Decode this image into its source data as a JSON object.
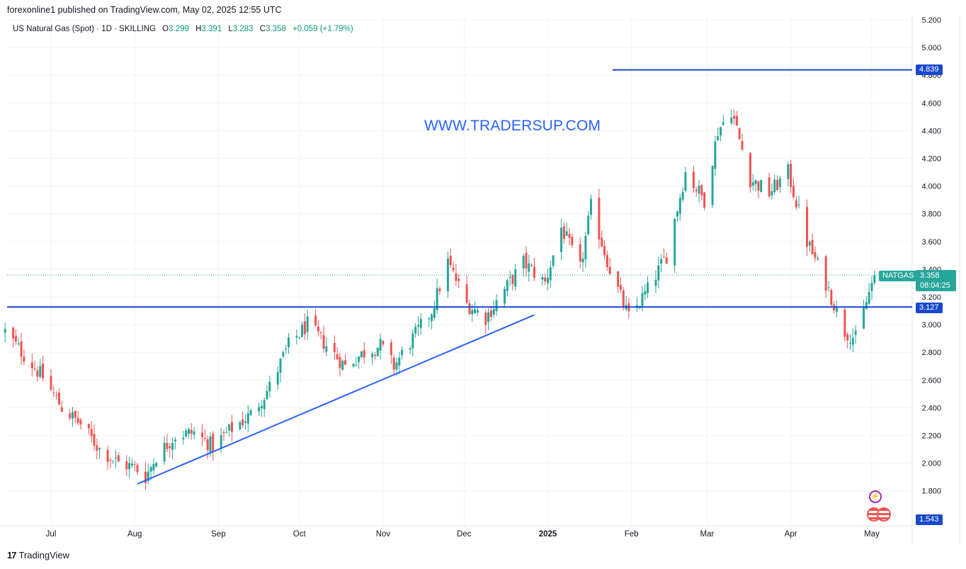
{
  "attribution": "forexonline1 published on TradingView.com, May 02, 2025 12:55 UTC",
  "legend": {
    "symbol": "US Natural Gas (Spot) · 1D · SKILLING",
    "o_label": "O",
    "open": "3.299",
    "h_label": "H",
    "high": "3.391",
    "l_label": "L",
    "low": "3.283",
    "c_label": "C",
    "close": "3.358",
    "change": "+0.059 (+1.79%)"
  },
  "watermark_text": "WWW.TRADERSUP.COM",
  "footer_brand": "TradingView",
  "colors": {
    "up": "#26a69a",
    "down": "#ef5350",
    "line": "#2962ff",
    "level": "#1848cc",
    "grid": "#f0f3fa"
  },
  "price_tags": {
    "symbol_tag": "NATGAS",
    "last_price": "3.358",
    "countdown": "08:04:25",
    "resistance": "4.839",
    "support": "3.127",
    "bottom_value": "1.543"
  },
  "chart_data": {
    "type": "candlestick",
    "title": "US Natural Gas (Spot) · 1D · SKILLING",
    "ylim": [
      1.6,
      5.2
    ],
    "y_ticks": [
      "1.800",
      "2.000",
      "2.200",
      "2.400",
      "2.600",
      "2.800",
      "3.000",
      "3.200",
      "3.400",
      "3.600",
      "3.800",
      "4.000",
      "4.200",
      "4.400",
      "4.600",
      "4.800",
      "5.000",
      "5.200"
    ],
    "x_labels": [
      "Jul",
      "Aug",
      "Sep",
      "Oct",
      "Nov",
      "Dec",
      "2025",
      "Feb",
      "Mar",
      "Apr",
      "May"
    ],
    "x_label_dates": [
      "2024-07-01",
      "2024-08-01",
      "2024-09-01",
      "2024-10-01",
      "2024-11-01",
      "2024-12-01",
      "2025-01-01",
      "2025-02-01",
      "2025-03-01",
      "2025-04-01",
      "2025-05-01"
    ],
    "horizontal_levels": [
      4.839,
      3.127
    ],
    "trendline": {
      "start": {
        "date": "2024-08-02",
        "price": 1.85
      },
      "end": {
        "date": "2024-12-27",
        "price": 3.07
      }
    },
    "last_price_line": 3.358,
    "close_points": [
      [
        "2024-06-14",
        2.95
      ],
      [
        "2024-06-21",
        2.78
      ],
      [
        "2024-06-28",
        2.62
      ],
      [
        "2024-07-05",
        2.4
      ],
      [
        "2024-07-12",
        2.28
      ],
      [
        "2024-07-19",
        2.1
      ],
      [
        "2024-07-26",
        2.0
      ],
      [
        "2024-08-01",
        1.97
      ],
      [
        "2024-08-05",
        1.9
      ],
      [
        "2024-08-09",
        2.05
      ],
      [
        "2024-08-16",
        2.2
      ],
      [
        "2024-08-23",
        2.22
      ],
      [
        "2024-08-30",
        2.12
      ],
      [
        "2024-09-06",
        2.25
      ],
      [
        "2024-09-13",
        2.35
      ],
      [
        "2024-09-20",
        2.55
      ],
      [
        "2024-09-27",
        2.85
      ],
      [
        "2024-10-04",
        3.0
      ],
      [
        "2024-10-11",
        2.85
      ],
      [
        "2024-10-18",
        2.7
      ],
      [
        "2024-10-25",
        2.8
      ],
      [
        "2024-10-31",
        2.85
      ],
      [
        "2024-11-05",
        2.7
      ],
      [
        "2024-11-12",
        2.9
      ],
      [
        "2024-11-19",
        3.1
      ],
      [
        "2024-11-25",
        3.45
      ],
      [
        "2024-12-02",
        3.15
      ],
      [
        "2024-12-09",
        3.05
      ],
      [
        "2024-12-16",
        3.25
      ],
      [
        "2024-12-23",
        3.45
      ],
      [
        "2024-12-31",
        3.3
      ],
      [
        "2025-01-06",
        3.7
      ],
      [
        "2025-01-13",
        3.4
      ],
      [
        "2025-01-17",
        3.85
      ],
      [
        "2025-01-24",
        3.4
      ],
      [
        "2025-01-31",
        3.05
      ],
      [
        "2025-02-07",
        3.25
      ],
      [
        "2025-02-14",
        3.5
      ],
      [
        "2025-02-21",
        4.1
      ],
      [
        "2025-02-28",
        3.9
      ],
      [
        "2025-03-05",
        4.4
      ],
      [
        "2025-03-10",
        4.55
      ],
      [
        "2025-03-17",
        4.05
      ],
      [
        "2025-03-24",
        3.95
      ],
      [
        "2025-03-31",
        4.1
      ],
      [
        "2025-04-07",
        3.6
      ],
      [
        "2025-04-14",
        3.3
      ],
      [
        "2025-04-21",
        2.95
      ],
      [
        "2025-04-25",
        2.9
      ],
      [
        "2025-05-02",
        3.358
      ]
    ]
  }
}
